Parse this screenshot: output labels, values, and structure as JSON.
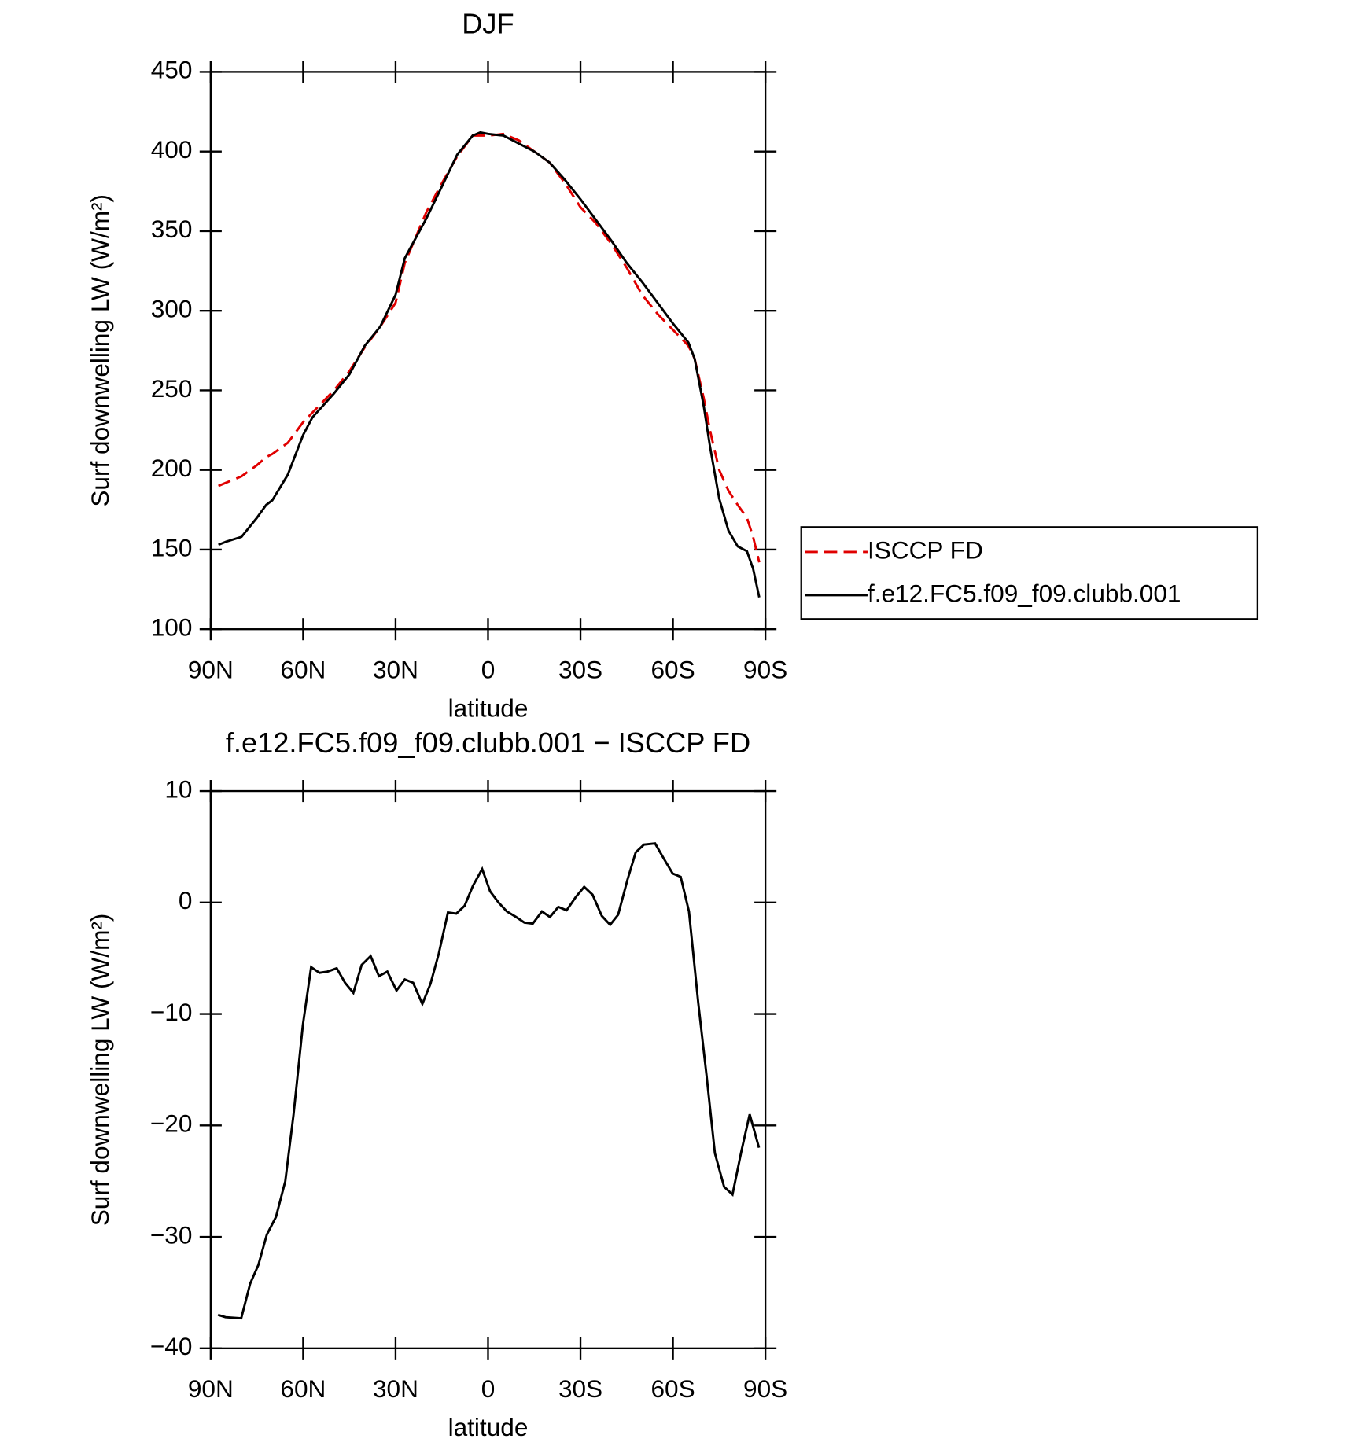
{
  "chart_data": [
    {
      "type": "line",
      "title": "DJF",
      "xlabel": "latitude",
      "ylabel": "Surf downwelling LW (W/m²)",
      "xlim": [
        90,
        -90
      ],
      "xticks": [
        {
          "value": 90,
          "label": "90N"
        },
        {
          "value": 60,
          "label": "60N"
        },
        {
          "value": 30,
          "label": "30N"
        },
        0,
        {
          "value": -30,
          "label": "30S"
        },
        {
          "value": -60,
          "label": "60S"
        },
        {
          "value": -90,
          "label": "90S"
        }
      ],
      "ylim": [
        100,
        450
      ],
      "yticks": [
        100,
        150,
        200,
        250,
        300,
        350,
        400,
        450
      ],
      "legend": "right",
      "x": [
        87.5,
        85,
        80,
        75,
        72,
        70,
        65,
        60,
        57,
        50,
        45,
        40,
        35,
        30,
        27,
        20,
        15,
        10,
        5,
        2.5,
        0,
        -5,
        -10,
        -15,
        -20,
        -25,
        -30,
        -35,
        -40,
        -45,
        -50,
        -55,
        -60,
        -65,
        -67,
        -70,
        -72,
        -75,
        -78,
        -81,
        -84,
        -86,
        -88
      ],
      "series": [
        {
          "name": "ISCCP FD",
          "color": "#e00000",
          "dash": true,
          "values": [
            190,
            192,
            196,
            203,
            208,
            210,
            217,
            230,
            236,
            250,
            262,
            277,
            290,
            305,
            330,
            362,
            380,
            397,
            410,
            410,
            410,
            411,
            407,
            400,
            393,
            380,
            365,
            355,
            342,
            327,
            310,
            298,
            288,
            278,
            270,
            245,
            225,
            200,
            187,
            178,
            170,
            158,
            142
          ]
        },
        {
          "name": "f.e12.FC5.f09_f09.clubb.001",
          "color": "#000000",
          "dash": false,
          "values": [
            153,
            155,
            158,
            170,
            178,
            181,
            197,
            222,
            233,
            248,
            260,
            278,
            290,
            310,
            333,
            358,
            378,
            398,
            410,
            412,
            411,
            410,
            405,
            400,
            393,
            382,
            370,
            357,
            344,
            330,
            318,
            305,
            292,
            280,
            270,
            240,
            215,
            182,
            162,
            152,
            149,
            138,
            120
          ]
        }
      ]
    },
    {
      "type": "line",
      "title": "f.e12.FC5.f09_f09.clubb.001 − ISCCP FD",
      "xlabel": "latitude",
      "ylabel": "Surf downwelling LW (W/m²)",
      "xlim": [
        90,
        -90
      ],
      "xticks": [
        {
          "value": 90,
          "label": "90N"
        },
        {
          "value": 60,
          "label": "60N"
        },
        {
          "value": 30,
          "label": "30N"
        },
        0,
        {
          "value": -30,
          "label": "30S"
        },
        {
          "value": -60,
          "label": "60S"
        },
        {
          "value": -90,
          "label": "90S"
        }
      ],
      "ylim": [
        -40,
        10
      ],
      "yticks": [
        {
          "value": -40,
          "label": "−40"
        },
        {
          "value": -30,
          "label": "−30"
        },
        {
          "value": -20,
          "label": "−20"
        },
        {
          "value": -10,
          "label": "−10"
        },
        0,
        10
      ],
      "x": [
        87.6,
        85.2,
        80.1,
        77.2,
        74.5,
        71.8,
        68.8,
        65.8,
        63.1,
        60.1,
        57.4,
        54.7,
        52.1,
        49.1,
        46.4,
        43.7,
        41.0,
        38.1,
        35.4,
        32.7,
        29.7,
        27.0,
        24.3,
        21.3,
        18.7,
        16.0,
        13.0,
        10.3,
        7.6,
        4.9,
        1.9,
        -0.7,
        -3.4,
        -6.1,
        -9.1,
        -11.8,
        -14.5,
        -17.5,
        -20.1,
        -22.8,
        -25.5,
        -28.5,
        -31.2,
        -33.9,
        -36.9,
        -39.6,
        -42.2,
        -45.2,
        -47.9,
        -50.6,
        -54.2,
        -56.9,
        -59.9,
        -62.5,
        -65.2,
        -68.2,
        -70.9,
        -73.6,
        -76.6,
        -79.3,
        -82.2,
        -84.9,
        -87.9
      ],
      "series": [
        {
          "color": "#000000",
          "dash": false,
          "values": [
            -37.0,
            -37.2,
            -37.3,
            -34.2,
            -32.5,
            -29.8,
            -28.2,
            -25,
            -19,
            -11,
            -5.8,
            -6.3,
            -6.2,
            -5.9,
            -7.2,
            -8.1,
            -5.6,
            -4.8,
            -6.6,
            -6.2,
            -7.9,
            -6.9,
            -7.2,
            -9.1,
            -7.3,
            -4.6,
            -0.9,
            -1,
            -0.3,
            1.5,
            3.0,
            1,
            0,
            -0.8,
            -1.3,
            -1.8,
            -1.9,
            -0.8,
            -1.3,
            -0.4,
            -0.7,
            0.5,
            1.4,
            0.7,
            -1.2,
            -2,
            -1.1,
            2,
            4.5,
            5.2,
            5.3,
            4,
            2.6,
            2.3,
            -0.8,
            -9,
            -15.5,
            -22.5,
            -25.5,
            -26.2,
            -22.3,
            -19,
            -22
          ]
        }
      ]
    }
  ]
}
